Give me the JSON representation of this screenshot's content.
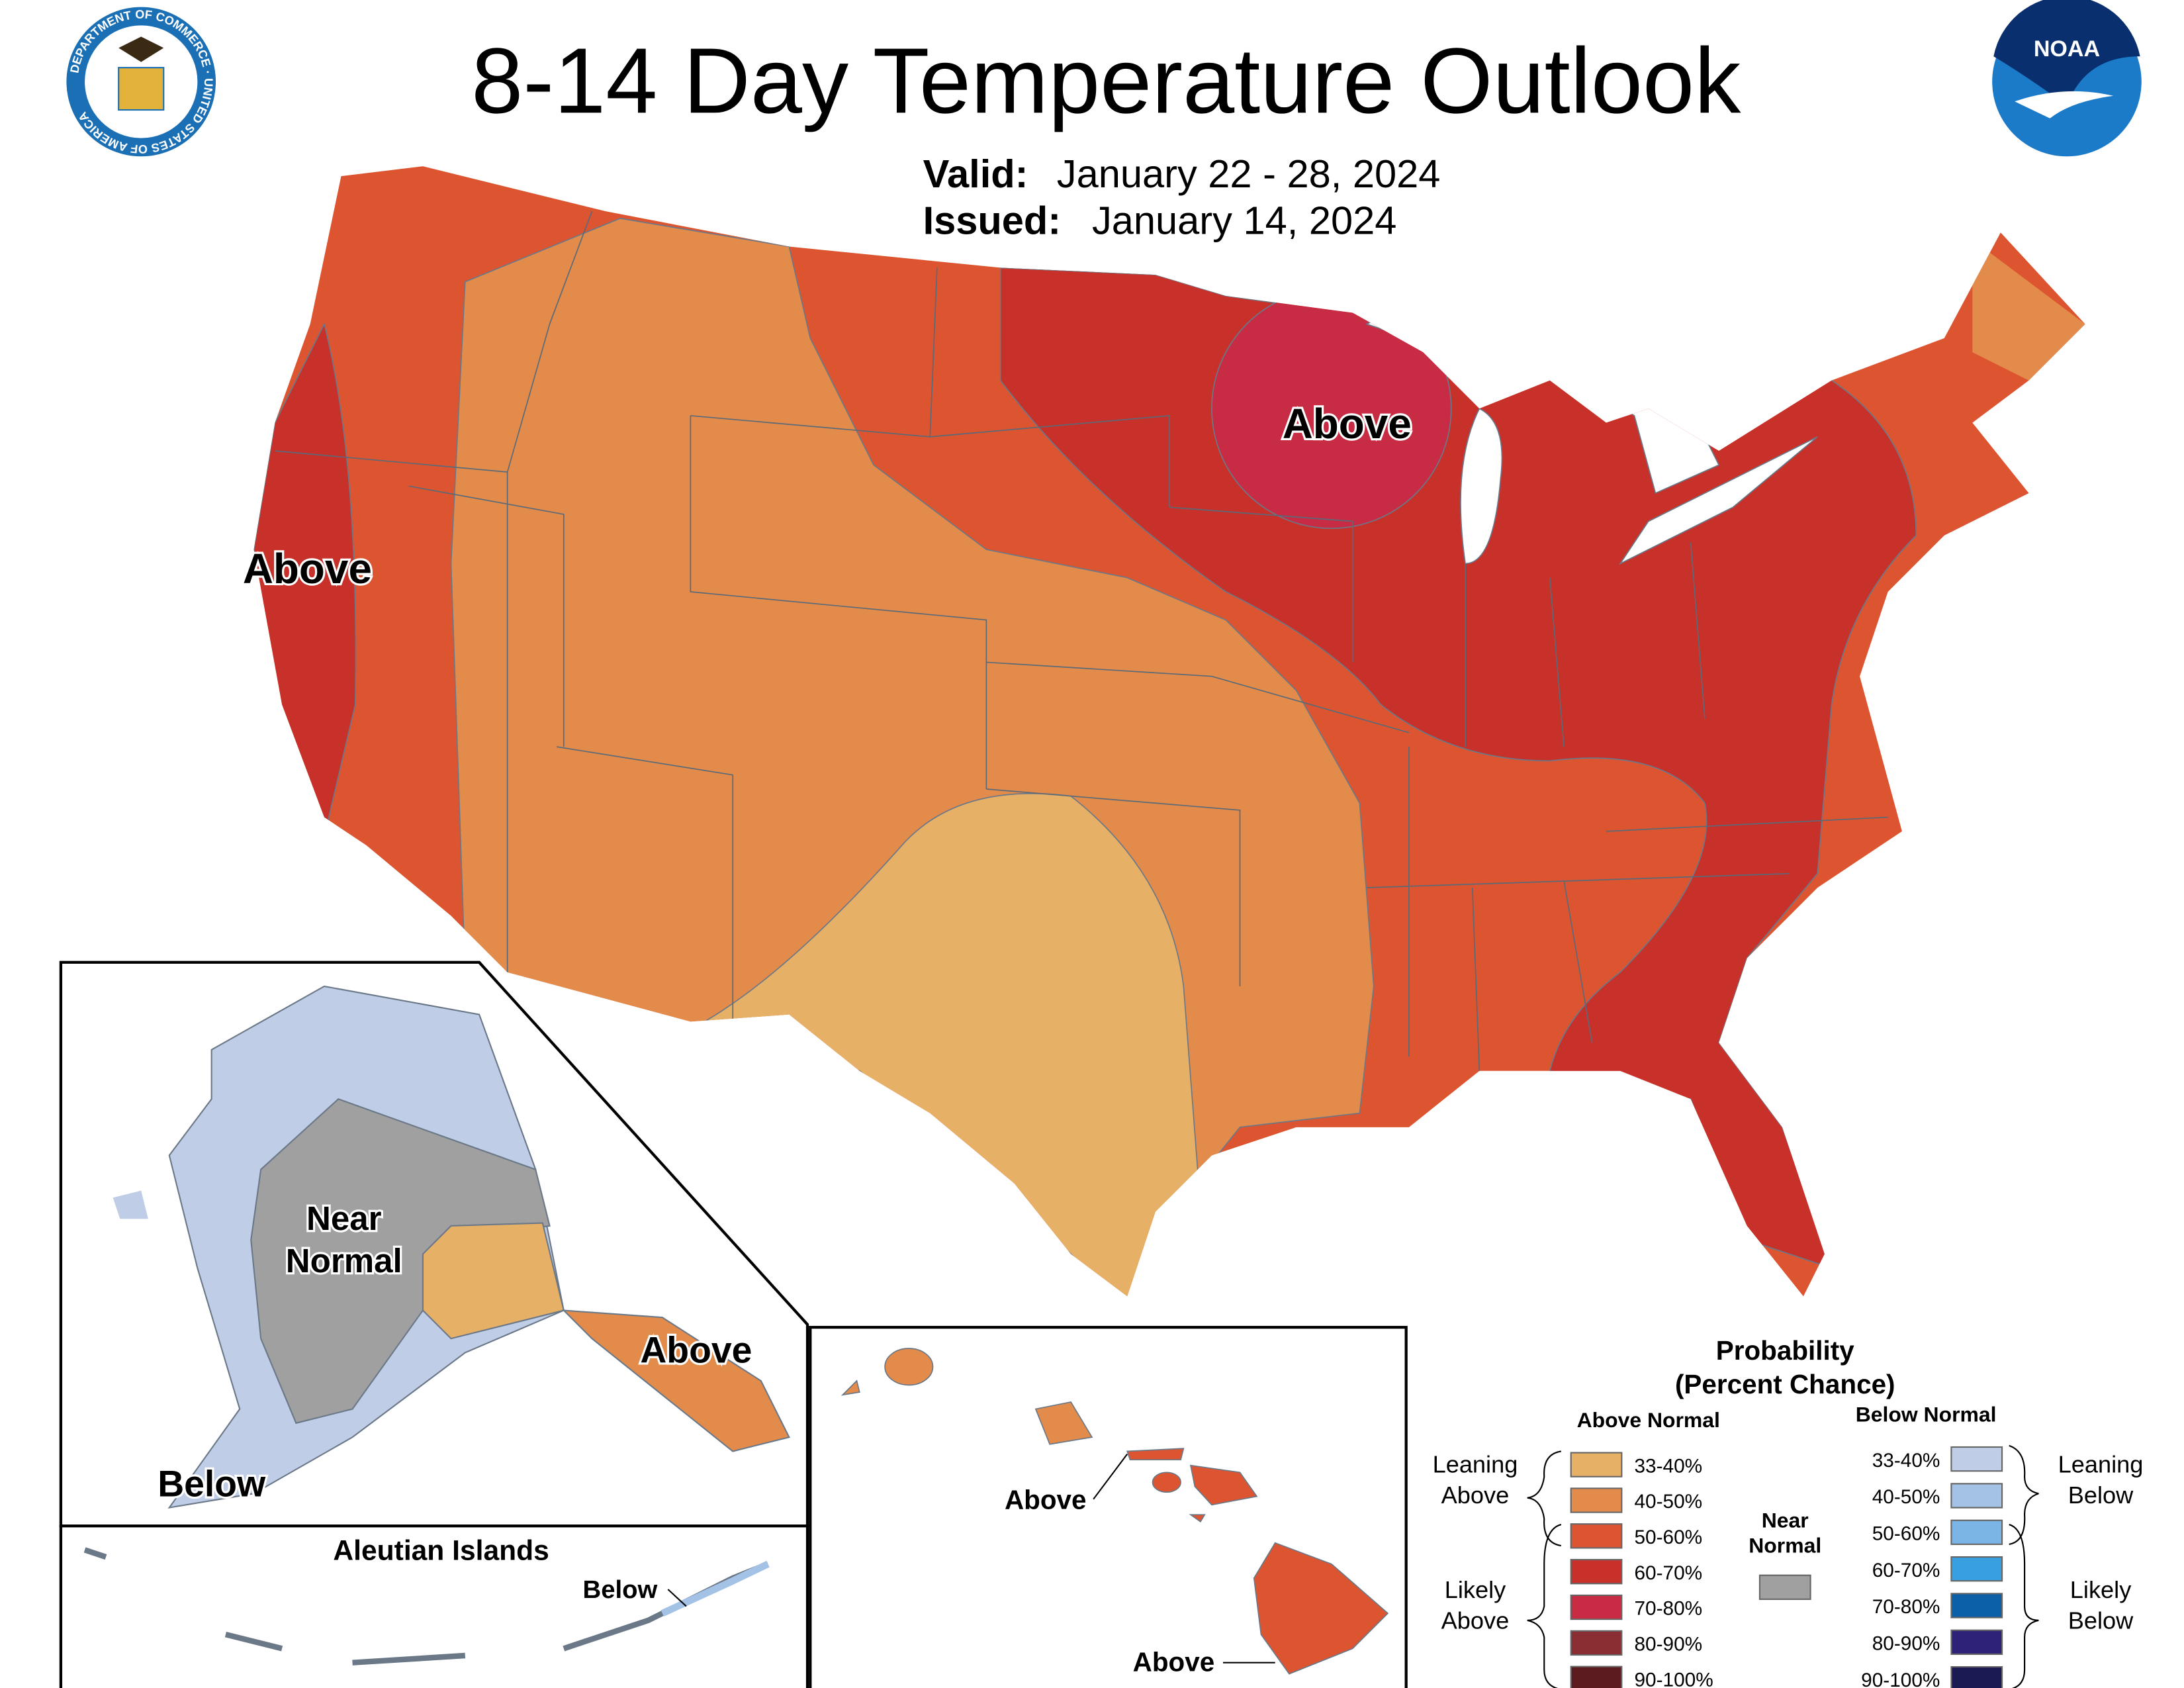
{
  "header": {
    "title": "8-14 Day Temperature Outlook",
    "valid_label": "Valid:",
    "valid_value": "January 22 - 28, 2024",
    "issued_label": "Issued:",
    "issued_value": "January 14, 2024",
    "noaa_logo_text": "NOAA",
    "doc_seal_text": "DEPARTMENT OF COMMERCE · UNITED STATES OF AMERICA"
  },
  "map_labels": {
    "west_coast": "Above",
    "great_lakes": "Above",
    "alaska_near_normal_1": "Near",
    "alaska_near_normal_2": "Normal",
    "alaska_above": "Above",
    "alaska_below": "Below",
    "aleutians_title": "Aleutian Islands",
    "aleutians_below": "Below",
    "hawaii_above_1": "Above",
    "hawaii_above_2": "Above"
  },
  "colors": {
    "above_33_40": "#e7b067",
    "above_40_50": "#e38b4a",
    "above_50_60": "#dc5530",
    "above_60_70": "#c8302a",
    "above_70_80": "#c82c45",
    "above_80_90": "#8b2e33",
    "above_90_100": "#5c1b1e",
    "near_normal": "#a0a0a0",
    "below_33_40": "#c0cde6",
    "below_40_50": "#a3c2e6",
    "below_50_60": "#7ab5e6",
    "below_60_70": "#38a0e0",
    "below_70_80": "#0c60a8",
    "below_80_90": "#2e2278",
    "below_90_100": "#1c1a52",
    "noaa_blue": "#1b7bc9"
  },
  "legend": {
    "title_1": "Probability",
    "title_2": "(Percent Chance)",
    "above_header": "Above Normal",
    "below_header": "Below Normal",
    "leaning_above_1": "Leaning",
    "leaning_above_2": "Above",
    "likely_above_1": "Likely",
    "likely_above_2": "Above",
    "leaning_below_1": "Leaning",
    "leaning_below_2": "Below",
    "likely_below_1": "Likely",
    "likely_below_2": "Below",
    "near_1": "Near",
    "near_2": "Normal",
    "above_items": [
      {
        "label": "33-40%",
        "color": "#e7b067"
      },
      {
        "label": "40-50%",
        "color": "#e38b4a"
      },
      {
        "label": "50-60%",
        "color": "#dc5530"
      },
      {
        "label": "60-70%",
        "color": "#c8302a"
      },
      {
        "label": "70-80%",
        "color": "#c82c45"
      },
      {
        "label": "80-90%",
        "color": "#8b2e33"
      },
      {
        "label": "90-100%",
        "color": "#5c1b1e"
      }
    ],
    "below_items": [
      {
        "label": "33-40%",
        "color": "#c0cde6"
      },
      {
        "label": "40-50%",
        "color": "#a3c2e6"
      },
      {
        "label": "50-60%",
        "color": "#7ab5e6"
      },
      {
        "label": "60-70%",
        "color": "#38a0e0"
      },
      {
        "label": "70-80%",
        "color": "#0c60a8"
      },
      {
        "label": "80-90%",
        "color": "#2e2278"
      },
      {
        "label": "90-100%",
        "color": "#1c1a52"
      }
    ]
  }
}
